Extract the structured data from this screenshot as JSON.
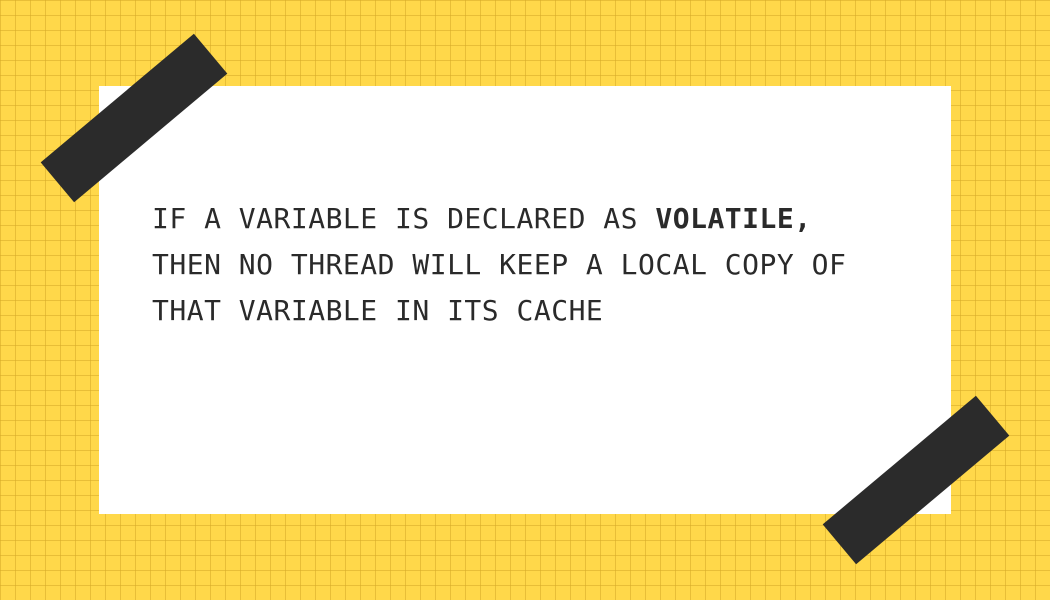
{
  "quote": {
    "line1_prefix": "IF A VARIABLE IS DECLARED AS ",
    "line1_emphasis": "VOLATILE,",
    "line2": "THEN NO THREAD WILL KEEP A LOCAL COPY OF",
    "line3": "THAT VARIABLE IN ITS CACHE"
  },
  "colors": {
    "background": "#ffd84a",
    "grid": "#d6aa28",
    "card": "#ffffff",
    "tape": "#2b2b2b",
    "text": "#2a2a2a"
  }
}
